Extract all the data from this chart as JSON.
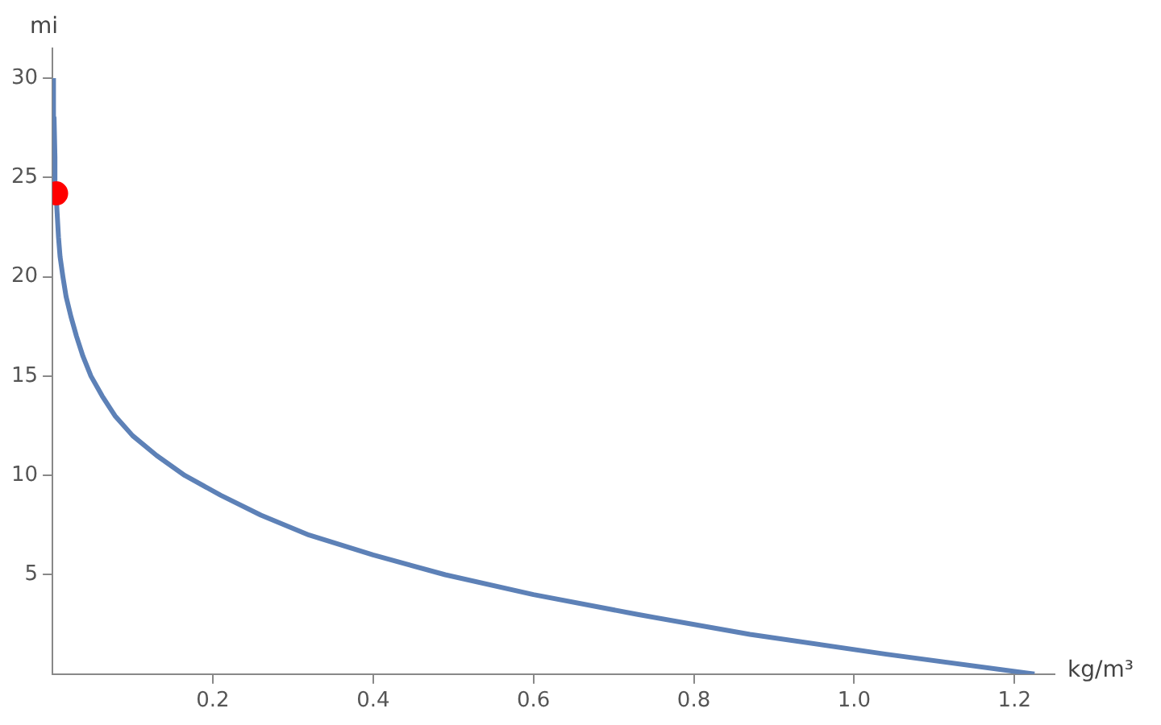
{
  "chart_data": {
    "type": "line",
    "xlabel": "kg/m³",
    "ylabel": "mi",
    "xlim": [
      0,
      1.25
    ],
    "ylim": [
      0,
      31.5
    ],
    "xticks": [
      0.2,
      0.4,
      0.6,
      0.8,
      {
        "value": 1,
        "label": "1.0"
      },
      1.2
    ],
    "yticks": [
      5,
      10,
      15,
      20,
      25,
      30
    ],
    "grid": false,
    "legend": false,
    "series": [
      {
        "color": "#5d81b7",
        "marker": "none",
        "x": [
          1.225,
          1.04,
          0.87,
          0.73,
          0.6,
          0.49,
          0.4,
          0.32,
          0.26,
          0.21,
          0.165,
          0.13,
          0.1,
          0.078,
          0.062,
          0.048,
          0.038,
          0.03,
          0.023,
          0.017,
          0.013,
          0.0095,
          0.0075,
          0.0047,
          0.0031,
          0.002,
          0.0013
        ],
        "values": [
          0,
          1,
          2,
          3,
          4,
          5,
          6,
          7,
          8,
          9,
          10,
          11,
          12,
          13,
          14,
          15,
          16,
          17,
          18,
          19,
          20,
          21,
          22,
          24,
          26,
          28,
          30
        ]
      },
      {
        "type": "scatter",
        "color": "#ff0000",
        "marker": "circle",
        "x": [
          0.0045
        ],
        "values": [
          24.2
        ]
      }
    ]
  }
}
